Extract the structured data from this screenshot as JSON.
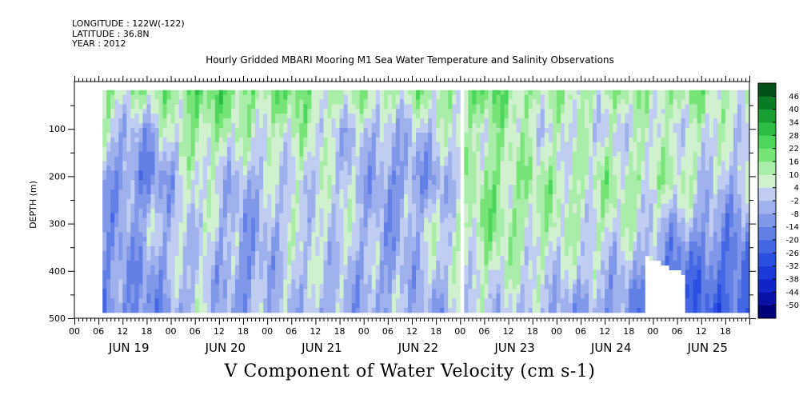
{
  "header": {
    "longitude": "LONGITUDE : 122W(-122)",
    "latitude": "LATITUDE : 36.8N",
    "year": "YEAR : 2012"
  },
  "chart_data": {
    "type": "heatmap",
    "title": "Hourly Gridded MBARI Mooring M1 Sea Water Temperature and Salinity Observations",
    "xlabel": "V Component of Water Velocity (cm s-1)",
    "ylabel": "DEPTH (m)",
    "x_range_hours": [
      0,
      168
    ],
    "x_start": "2012-06-19 00:00",
    "hour_tick_labels": [
      "00",
      "06",
      "12",
      "18",
      "00",
      "06",
      "12",
      "18",
      "00",
      "06",
      "12",
      "18",
      "00",
      "06",
      "12",
      "18",
      "00",
      "06",
      "12",
      "18",
      "00",
      "06",
      "12",
      "18",
      "00",
      "06",
      "12",
      "18"
    ],
    "day_labels": [
      "JUN 19",
      "JUN 20",
      "JUN 21",
      "JUN 22",
      "JUN 23",
      "JUN 24",
      "JUN 25"
    ],
    "y_range": [
      500,
      0
    ],
    "y_ticks": [
      100,
      200,
      300,
      400,
      500
    ],
    "y_tick_labels": [
      "100",
      "200",
      "300",
      "400",
      "500"
    ],
    "depth_range_of_data": [
      18,
      486
    ],
    "data_time_range_hours": [
      7,
      168
    ],
    "colorbar_levels": [
      -50,
      -44,
      -38,
      -32,
      -26,
      -20,
      -14,
      -8,
      -2,
      4,
      10,
      16,
      22,
      28,
      34,
      40,
      46
    ],
    "colorbar_labels": [
      "46",
      "40",
      "34",
      "28",
      "22",
      "16",
      "10",
      "4",
      "-2",
      "-8",
      "-14",
      "-20",
      "-26",
      "-32",
      "-38",
      "-44",
      "-50"
    ],
    "colorbar_colors": [
      "#00007a",
      "#0a12a6",
      "#1026c6",
      "#1c3ad6",
      "#2a50e2",
      "#4468e4",
      "#6080e6",
      "#8098e8",
      "#a0b0ec",
      "#c0ccf2",
      "#d0f0d0",
      "#a8eea8",
      "#78e478",
      "#4cd65c",
      "#2cbe44",
      "#16a032",
      "#0a7c24",
      "#04501a"
    ],
    "series": [
      {
        "depth_m": [
          20,
          100,
          200,
          300,
          400,
          480
        ],
        "description_profile_cm_s": [
          {
            "time": "JUN 19 06",
            "values": [
              14,
              2,
              -10,
              -8,
              -12,
              -12
            ]
          },
          {
            "time": "JUN 19 18",
            "values": [
              10,
              -6,
              -14,
              -4,
              -10,
              -14
            ]
          },
          {
            "time": "JUN 20 06",
            "values": [
              22,
              16,
              6,
              4,
              2,
              0
            ]
          },
          {
            "time": "JUN 20 18",
            "values": [
              16,
              6,
              -4,
              -8,
              -10,
              -8
            ]
          },
          {
            "time": "JUN 21 06",
            "values": [
              18,
              10,
              4,
              2,
              2,
              0
            ]
          },
          {
            "time": "JUN 21 18",
            "values": [
              10,
              0,
              2,
              4,
              -2,
              -6
            ]
          },
          {
            "time": "JUN 22 06",
            "values": [
              12,
              -4,
              -10,
              -8,
              -6,
              -4
            ]
          },
          {
            "time": "JUN 22 18",
            "values": [
              10,
              2,
              -8,
              4,
              0,
              -6
            ]
          },
          {
            "time": "JUN 23 06",
            "values": [
              20,
              12,
              16,
              14,
              8,
              2
            ]
          },
          {
            "time": "JUN 23 18",
            "values": [
              12,
              6,
              12,
              10,
              4,
              -2
            ]
          },
          {
            "time": "JUN 24 06",
            "values": [
              10,
              4,
              10,
              8,
              0,
              -8
            ]
          },
          {
            "time": "JUN 24 18",
            "values": [
              12,
              4,
              12,
              6,
              -4,
              -10
            ]
          },
          {
            "time": "JUN 25 06",
            "values": [
              14,
              6,
              10,
              -6,
              -18,
              -20
            ]
          },
          {
            "time": "JUN 25 18",
            "values": [
              10,
              4,
              -2,
              -10,
              -20,
              -24
            ]
          }
        ]
      }
    ]
  }
}
